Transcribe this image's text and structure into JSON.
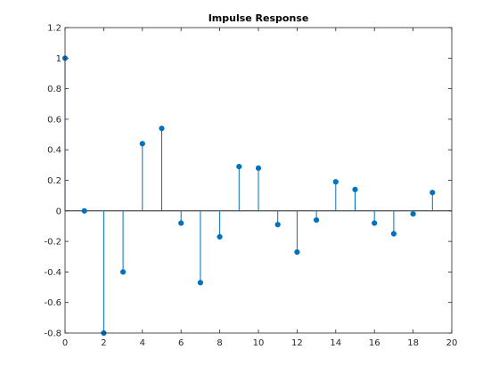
{
  "chart_data": {
    "type": "stem",
    "title": "Impulse Response",
    "xlabel": "",
    "ylabel": "",
    "xlim": [
      0,
      20
    ],
    "ylim": [
      -0.8,
      1.2
    ],
    "xticks": [
      0,
      2,
      4,
      6,
      8,
      10,
      12,
      14,
      16,
      18,
      20
    ],
    "yticks": [
      -0.8,
      -0.6,
      -0.4,
      -0.2,
      0,
      0.2,
      0.4,
      0.6,
      0.8,
      1,
      1.2
    ],
    "xtick_labels": [
      "0",
      "2",
      "4",
      "6",
      "8",
      "10",
      "12",
      "14",
      "16",
      "18",
      "20"
    ],
    "ytick_labels": [
      "-0.8",
      "-0.6",
      "-0.4",
      "-0.2",
      "0",
      "0.2",
      "0.4",
      "0.6",
      "0.8",
      "1",
      "1.2"
    ],
    "grid": false,
    "baseline": 0,
    "series": [
      {
        "color": "#0072bd",
        "x": [
          0,
          1,
          2,
          3,
          4,
          5,
          6,
          7,
          8,
          9,
          10,
          11,
          12,
          13,
          14,
          15,
          16,
          17,
          18,
          19
        ],
        "values": [
          1.0,
          0.0,
          -0.8,
          -0.4,
          0.44,
          0.54,
          -0.08,
          -0.47,
          -0.17,
          0.29,
          0.28,
          -0.09,
          -0.27,
          -0.06,
          0.19,
          0.14,
          -0.08,
          -0.15,
          -0.02,
          0.12
        ]
      }
    ]
  }
}
